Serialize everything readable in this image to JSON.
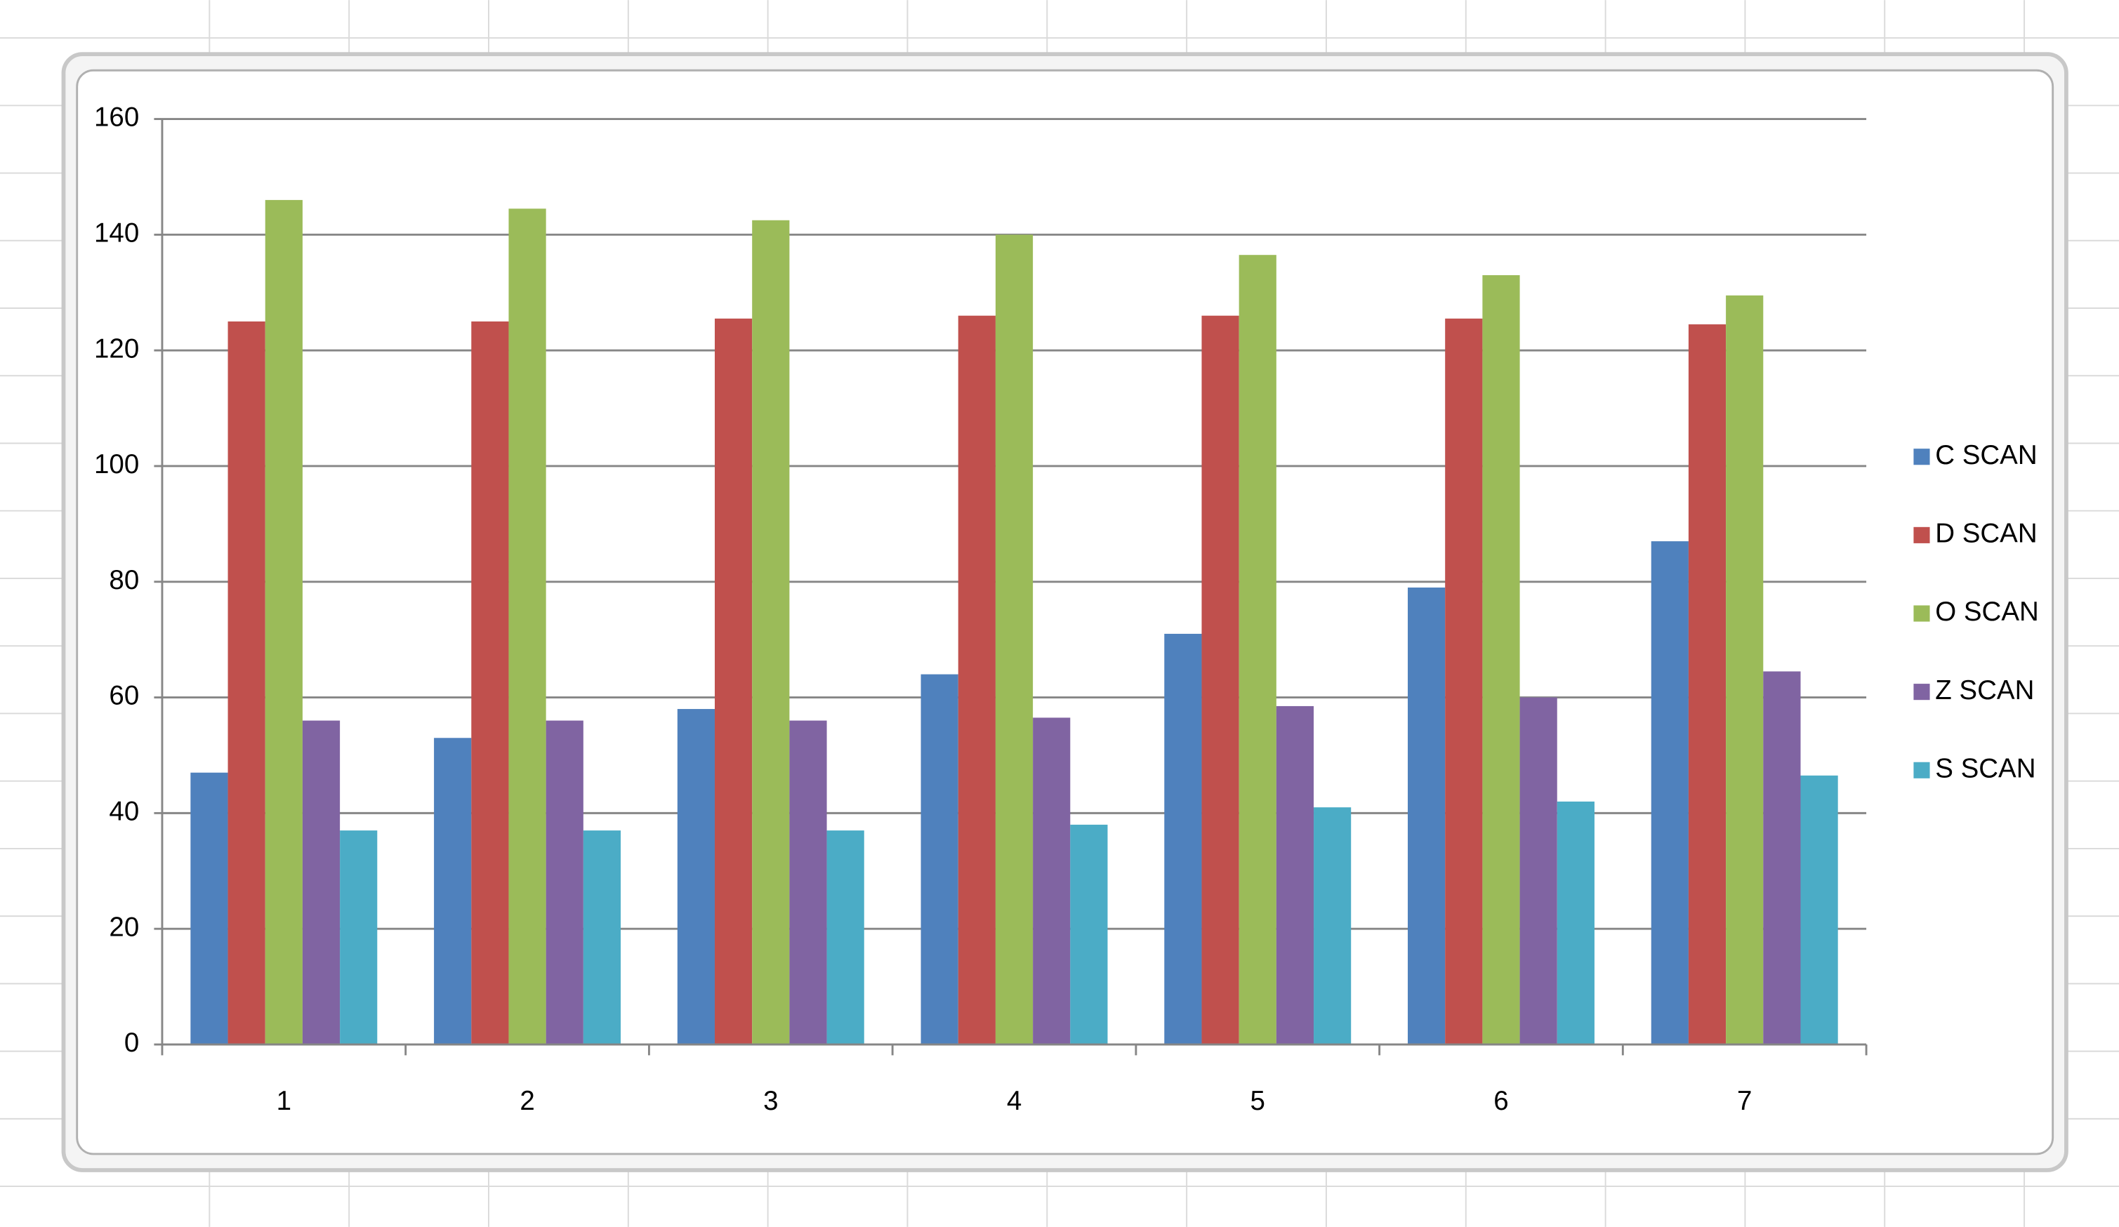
{
  "chart_data": {
    "type": "bar",
    "categories": [
      "1",
      "2",
      "3",
      "4",
      "5",
      "6",
      "7"
    ],
    "series": [
      {
        "name": "C SCAN",
        "color": "#4f81bd",
        "values": [
          47,
          53,
          58,
          64,
          71,
          79,
          87
        ]
      },
      {
        "name": "D SCAN",
        "color": "#c0504d",
        "values": [
          125,
          125,
          125.5,
          126,
          126,
          125.5,
          124.5
        ]
      },
      {
        "name": "O SCAN",
        "color": "#9bbb59",
        "values": [
          146,
          144.5,
          142.5,
          140,
          136.5,
          133,
          129.5
        ]
      },
      {
        "name": "Z SCAN",
        "color": "#8064a2",
        "values": [
          56,
          56,
          56,
          56.5,
          58.5,
          60,
          64.5
        ]
      },
      {
        "name": "S SCAN",
        "color": "#4bacc6",
        "values": [
          37,
          37,
          37,
          38,
          41,
          42,
          46.5
        ]
      }
    ],
    "ylim": [
      0,
      160
    ],
    "yticks": [
      0,
      20,
      40,
      60,
      80,
      100,
      120,
      140,
      160
    ],
    "grid": true,
    "legend": "right"
  }
}
